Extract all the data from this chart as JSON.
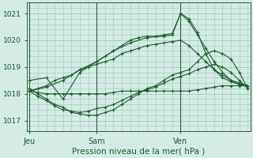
{
  "title": "Pression niveau de la mer( hPa )",
  "bg_color": "#d4ece5",
  "grid_color": "#9ec8ba",
  "line_color": "#1a5c2a",
  "spine_color": "#2a6040",
  "ylim": [
    1016.6,
    1021.4
  ],
  "yticks": [
    1017,
    1018,
    1019,
    1020,
    1021
  ],
  "xtick_labels": [
    "Jeu",
    "Sam",
    "Ven"
  ],
  "xtick_pos": [
    0,
    8,
    18
  ],
  "xlim": [
    -0.3,
    26.3
  ],
  "series": [
    {
      "x": [
        0,
        1,
        2,
        3,
        4,
        5,
        6,
        7,
        8,
        9,
        10,
        11,
        12,
        13,
        14,
        15,
        16,
        17,
        18,
        19,
        20,
        21,
        22,
        23,
        24,
        25,
        26
      ],
      "y": [
        1018.1,
        1018.05,
        1018.0,
        1018.0,
        1018.0,
        1018.0,
        1018.0,
        1018.0,
        1018.0,
        1018.0,
        1018.05,
        1018.1,
        1018.1,
        1018.1,
        1018.1,
        1018.1,
        1018.1,
        1018.1,
        1018.1,
        1018.1,
        1018.15,
        1018.2,
        1018.25,
        1018.3,
        1018.3,
        1018.3,
        1018.3
      ],
      "lw": 0.8,
      "marker": "+",
      "ms": 2.5
    },
    {
      "x": [
        0,
        1,
        2,
        3,
        4,
        5,
        6,
        7,
        8,
        9,
        10,
        11,
        12,
        13,
        14,
        15,
        16,
        17,
        18,
        19,
        20,
        21,
        22,
        23,
        24,
        25,
        26
      ],
      "y": [
        1018.1,
        1018.2,
        1018.3,
        1018.5,
        1018.6,
        1018.7,
        1018.9,
        1019.0,
        1019.1,
        1019.2,
        1019.3,
        1019.5,
        1019.6,
        1019.7,
        1019.8,
        1019.85,
        1019.9,
        1019.95,
        1020.0,
        1019.8,
        1019.5,
        1019.2,
        1018.9,
        1018.7,
        1018.5,
        1018.4,
        1018.3
      ],
      "lw": 0.8,
      "marker": "+",
      "ms": 2.5
    },
    {
      "x": [
        0,
        2,
        4,
        6,
        8,
        9,
        10,
        11,
        12,
        13,
        14,
        15,
        16,
        17,
        18,
        19,
        20,
        21,
        22,
        23,
        24,
        25,
        26
      ],
      "y": [
        1018.1,
        1018.25,
        1018.5,
        1018.9,
        1019.2,
        1019.4,
        1019.6,
        1019.8,
        1020.0,
        1020.1,
        1020.15,
        1020.15,
        1020.2,
        1020.25,
        1021.0,
        1020.8,
        1020.3,
        1019.5,
        1018.9,
        1018.6,
        1018.45,
        1018.35,
        1018.3
      ],
      "lw": 0.8,
      "marker": "+",
      "ms": 3
    },
    {
      "x": [
        0,
        2,
        4,
        6,
        8,
        10,
        12,
        14,
        16,
        17,
        18,
        19,
        20,
        21,
        22,
        23,
        24,
        25,
        26
      ],
      "y": [
        1018.5,
        1018.6,
        1017.8,
        1018.8,
        1019.2,
        1019.6,
        1019.9,
        1020.1,
        1020.15,
        1020.2,
        1021.0,
        1020.7,
        1020.2,
        1019.7,
        1019.2,
        1018.8,
        1018.5,
        1018.4,
        1018.3
      ],
      "lw": 0.8,
      "marker": "+",
      "ms": 3
    },
    {
      "x": [
        0,
        1,
        2,
        3,
        4,
        5,
        6,
        7,
        8,
        9,
        10,
        11,
        12,
        13,
        14,
        15,
        16,
        17,
        18,
        19,
        20,
        21,
        22,
        23,
        24,
        25,
        26
      ],
      "y": [
        1018.2,
        1018.0,
        1017.8,
        1017.6,
        1017.5,
        1017.3,
        1017.25,
        1017.2,
        1017.2,
        1017.3,
        1017.4,
        1017.6,
        1017.8,
        1018.0,
        1018.2,
        1018.3,
        1018.5,
        1018.7,
        1018.8,
        1018.9,
        1019.2,
        1019.5,
        1019.6,
        1019.5,
        1019.3,
        1018.8,
        1018.2
      ],
      "lw": 0.8,
      "marker": "+",
      "ms": 2.5
    },
    {
      "x": [
        0,
        1,
        2,
        3,
        4,
        5,
        6,
        7,
        8,
        9,
        10,
        11,
        12,
        13,
        14,
        15,
        16,
        17,
        18,
        19,
        20,
        21,
        22,
        23,
        24,
        25,
        26
      ],
      "y": [
        1018.1,
        1017.9,
        1017.75,
        1017.55,
        1017.4,
        1017.35,
        1017.3,
        1017.35,
        1017.45,
        1017.5,
        1017.6,
        1017.75,
        1017.9,
        1018.05,
        1018.15,
        1018.25,
        1018.4,
        1018.55,
        1018.65,
        1018.75,
        1018.9,
        1019.0,
        1019.1,
        1019.0,
        1018.8,
        1018.5,
        1018.2
      ],
      "lw": 0.8,
      "marker": "+",
      "ms": 2.5
    }
  ]
}
